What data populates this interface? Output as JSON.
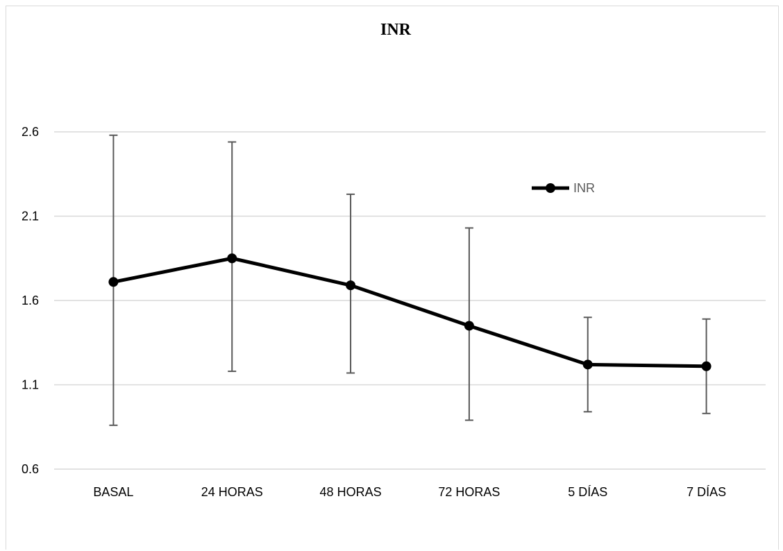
{
  "chart_data": {
    "type": "line",
    "title": "INR",
    "categories": [
      "BASAL",
      "24 HORAS",
      "48 HORAS",
      "72 HORAS",
      "5 DÍAS",
      "7 DÍAS"
    ],
    "series": [
      {
        "name": "INR",
        "values": [
          1.71,
          1.85,
          1.69,
          1.45,
          1.22,
          1.21
        ],
        "error_low": [
          0.86,
          1.18,
          1.17,
          0.89,
          0.94,
          0.93
        ],
        "error_high": [
          2.58,
          2.54,
          2.23,
          2.03,
          1.5,
          1.49
        ],
        "color": "#000000"
      }
    ],
    "ylim": [
      0.6,
      2.6
    ],
    "yticks": [
      "2.6",
      "2.1",
      "1.6",
      "1.1",
      "0.6"
    ],
    "ytick_values": [
      2.6,
      2.1,
      1.6,
      1.1,
      0.6
    ],
    "grid": true,
    "legend_position": "upper-right",
    "gridline_color": "#d9d9d9",
    "errorbar_color": "#595959"
  }
}
